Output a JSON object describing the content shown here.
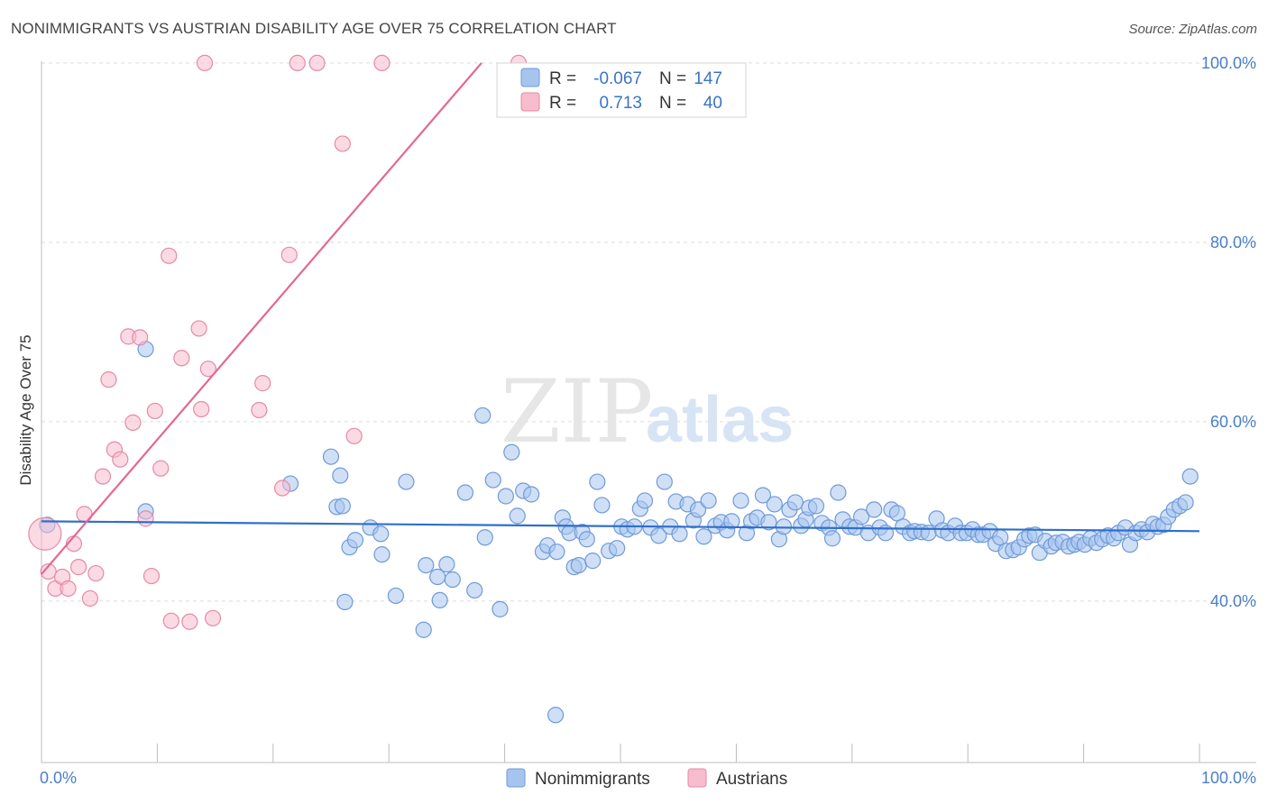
{
  "title": "NONIMMIGRANTS VS AUSTRIAN DISABILITY AGE OVER 75 CORRELATION CHART",
  "source": "Source: ZipAtlas.com",
  "watermark": {
    "zip": "ZIP",
    "atlas": "atlas"
  },
  "chart_data": {
    "type": "scatter",
    "xlabel": "",
    "ylabel": "Disability Age Over 75",
    "xlim": [
      0,
      100
    ],
    "ylim": [
      22,
      102
    ],
    "x_tick_labels": [
      "0.0%",
      "100.0%"
    ],
    "y_ticks": [
      {
        "value": 40,
        "label": "40.0%"
      },
      {
        "value": 60,
        "label": "60.0%"
      },
      {
        "value": 80,
        "label": "80.0%"
      },
      {
        "value": 100,
        "label": "100.0%"
      }
    ],
    "grid": "horizontal dashed",
    "legend": {
      "stats_position": "top-center",
      "bottom_position": "bottom-center",
      "rows": [
        {
          "r_label": "R =",
          "r_value": "-0.067",
          "n_label": "N =",
          "n_value": "147",
          "series": "Nonimmigrants"
        },
        {
          "r_label": "R =",
          "r_value": "0.713",
          "n_label": "N =",
          "n_value": "40",
          "series": "Austrians"
        }
      ]
    },
    "series": [
      {
        "name": "Nonimmigrants",
        "color": "#a7c4ef",
        "stroke": "#6f9ad8",
        "line_color": "#2f6fcc",
        "trend": {
          "x1": 0,
          "y1": 48.9,
          "x2": 100,
          "y2": 47.8
        },
        "points": [
          [
            9.0,
            68.1
          ],
          [
            9.0,
            50.0
          ],
          [
            21.5,
            53.1
          ],
          [
            25.0,
            56.1
          ],
          [
            25.5,
            50.5
          ],
          [
            25.8,
            54.0
          ],
          [
            26.0,
            50.6
          ],
          [
            26.2,
            39.9
          ],
          [
            26.6,
            46.0
          ],
          [
            27.1,
            46.8
          ],
          [
            28.4,
            48.2
          ],
          [
            29.3,
            47.5
          ],
          [
            29.4,
            45.2
          ],
          [
            30.6,
            40.6
          ],
          [
            31.5,
            53.3
          ],
          [
            33.0,
            36.8
          ],
          [
            33.2,
            44.0
          ],
          [
            34.2,
            42.7
          ],
          [
            34.4,
            40.1
          ],
          [
            35.0,
            44.1
          ],
          [
            35.5,
            42.4
          ],
          [
            36.6,
            52.1
          ],
          [
            37.4,
            41.2
          ],
          [
            38.1,
            60.7
          ],
          [
            38.3,
            47.1
          ],
          [
            39.0,
            53.5
          ],
          [
            39.6,
            39.1
          ],
          [
            40.1,
            51.7
          ],
          [
            40.6,
            56.6
          ],
          [
            41.1,
            49.5
          ],
          [
            41.6,
            52.3
          ],
          [
            42.3,
            51.9
          ],
          [
            43.3,
            45.5
          ],
          [
            43.7,
            46.2
          ],
          [
            44.4,
            27.3
          ],
          [
            44.5,
            45.5
          ],
          [
            45.0,
            49.3
          ],
          [
            45.3,
            48.3
          ],
          [
            45.6,
            47.6
          ],
          [
            46.0,
            43.8
          ],
          [
            46.4,
            44.0
          ],
          [
            46.7,
            47.7
          ],
          [
            47.1,
            46.9
          ],
          [
            47.6,
            44.5
          ],
          [
            48.0,
            53.3
          ],
          [
            48.4,
            50.7
          ],
          [
            49.0,
            45.6
          ],
          [
            49.7,
            45.9
          ],
          [
            50.1,
            48.3
          ],
          [
            50.6,
            48.0
          ],
          [
            51.2,
            48.3
          ],
          [
            51.7,
            50.3
          ],
          [
            52.1,
            51.2
          ],
          [
            52.6,
            48.2
          ],
          [
            53.3,
            47.3
          ],
          [
            53.8,
            53.3
          ],
          [
            54.3,
            48.3
          ],
          [
            54.8,
            51.1
          ],
          [
            55.1,
            47.5
          ],
          [
            55.8,
            50.8
          ],
          [
            56.3,
            49.0
          ],
          [
            56.7,
            50.2
          ],
          [
            57.2,
            47.2
          ],
          [
            57.6,
            51.2
          ],
          [
            58.2,
            48.4
          ],
          [
            58.7,
            48.8
          ],
          [
            59.2,
            47.9
          ],
          [
            59.6,
            48.9
          ],
          [
            60.4,
            51.2
          ],
          [
            60.9,
            47.6
          ],
          [
            61.3,
            48.9
          ],
          [
            61.8,
            49.3
          ],
          [
            62.3,
            51.8
          ],
          [
            62.8,
            48.8
          ],
          [
            63.3,
            50.8
          ],
          [
            63.7,
            46.9
          ],
          [
            64.1,
            48.3
          ],
          [
            64.6,
            50.2
          ],
          [
            65.1,
            51.0
          ],
          [
            65.6,
            48.4
          ],
          [
            66.0,
            49.1
          ],
          [
            66.3,
            50.4
          ],
          [
            66.9,
            50.6
          ],
          [
            67.4,
            48.7
          ],
          [
            68.0,
            48.2
          ],
          [
            68.3,
            47.0
          ],
          [
            68.8,
            52.1
          ],
          [
            69.2,
            49.1
          ],
          [
            69.8,
            48.3
          ],
          [
            70.3,
            48.2
          ],
          [
            70.8,
            49.4
          ],
          [
            71.4,
            47.6
          ],
          [
            71.9,
            50.2
          ],
          [
            72.4,
            48.2
          ],
          [
            72.9,
            47.6
          ],
          [
            73.4,
            50.2
          ],
          [
            73.9,
            49.8
          ],
          [
            74.4,
            48.3
          ],
          [
            75.0,
            47.6
          ],
          [
            75.4,
            47.8
          ],
          [
            76.0,
            47.7
          ],
          [
            76.6,
            47.6
          ],
          [
            77.3,
            49.2
          ],
          [
            77.8,
            47.9
          ],
          [
            78.3,
            47.6
          ],
          [
            78.9,
            48.4
          ],
          [
            79.4,
            47.6
          ],
          [
            79.9,
            47.6
          ],
          [
            80.4,
            48.0
          ],
          [
            80.9,
            47.4
          ],
          [
            81.3,
            47.4
          ],
          [
            81.9,
            47.8
          ],
          [
            82.4,
            46.4
          ],
          [
            82.8,
            47.1
          ],
          [
            83.3,
            45.6
          ],
          [
            83.9,
            45.7
          ],
          [
            84.4,
            46.0
          ],
          [
            84.9,
            46.9
          ],
          [
            85.3,
            47.3
          ],
          [
            85.8,
            47.4
          ],
          [
            86.2,
            45.4
          ],
          [
            86.7,
            46.7
          ],
          [
            87.2,
            46.1
          ],
          [
            87.6,
            46.5
          ],
          [
            88.2,
            46.6
          ],
          [
            88.7,
            46.1
          ],
          [
            89.2,
            46.3
          ],
          [
            89.6,
            46.6
          ],
          [
            90.1,
            46.3
          ],
          [
            90.6,
            47.0
          ],
          [
            91.1,
            46.5
          ],
          [
            91.6,
            46.9
          ],
          [
            92.1,
            47.3
          ],
          [
            92.6,
            47.0
          ],
          [
            93.0,
            47.6
          ],
          [
            93.6,
            48.2
          ],
          [
            94.0,
            46.3
          ],
          [
            94.5,
            47.6
          ],
          [
            95.0,
            48.0
          ],
          [
            95.5,
            47.7
          ],
          [
            96.0,
            48.6
          ],
          [
            96.4,
            48.3
          ],
          [
            96.9,
            48.5
          ],
          [
            97.3,
            49.4
          ],
          [
            97.8,
            50.2
          ],
          [
            98.3,
            50.6
          ],
          [
            98.8,
            51.0
          ],
          [
            99.2,
            53.9
          ],
          [
            0.5,
            48.5
          ]
        ]
      },
      {
        "name": "Austrians",
        "color": "#f7bccd",
        "stroke": "#e58aa6",
        "line_color": "#e46891",
        "trend": {
          "x1": 0,
          "y1": 43.0,
          "x2": 38.0,
          "y2": 100.0
        },
        "points": [
          [
            0.3,
            47.5
          ],
          [
            0.6,
            43.3
          ],
          [
            1.2,
            41.4
          ],
          [
            1.8,
            42.7
          ],
          [
            2.3,
            41.4
          ],
          [
            2.8,
            46.4
          ],
          [
            3.2,
            43.8
          ],
          [
            3.7,
            49.7
          ],
          [
            4.2,
            40.3
          ],
          [
            4.7,
            43.1
          ],
          [
            5.3,
            53.9
          ],
          [
            5.8,
            64.7
          ],
          [
            6.3,
            56.9
          ],
          [
            6.8,
            55.8
          ],
          [
            7.5,
            69.5
          ],
          [
            7.9,
            59.9
          ],
          [
            8.5,
            69.4
          ],
          [
            9.0,
            49.2
          ],
          [
            9.5,
            42.8
          ],
          [
            9.8,
            61.2
          ],
          [
            10.3,
            54.8
          ],
          [
            11.0,
            78.5
          ],
          [
            11.2,
            37.8
          ],
          [
            12.1,
            67.1
          ],
          [
            12.8,
            37.7
          ],
          [
            13.6,
            70.4
          ],
          [
            13.8,
            61.4
          ],
          [
            14.1,
            100.0
          ],
          [
            14.4,
            65.9
          ],
          [
            14.8,
            38.1
          ],
          [
            18.8,
            61.3
          ],
          [
            19.1,
            64.3
          ],
          [
            20.8,
            52.6
          ],
          [
            21.4,
            78.6
          ],
          [
            22.1,
            100.0
          ],
          [
            23.8,
            100.0
          ],
          [
            26.0,
            91.0
          ],
          [
            27.0,
            58.4
          ],
          [
            29.4,
            100.0
          ],
          [
            41.2,
            100.0
          ]
        ]
      }
    ]
  }
}
